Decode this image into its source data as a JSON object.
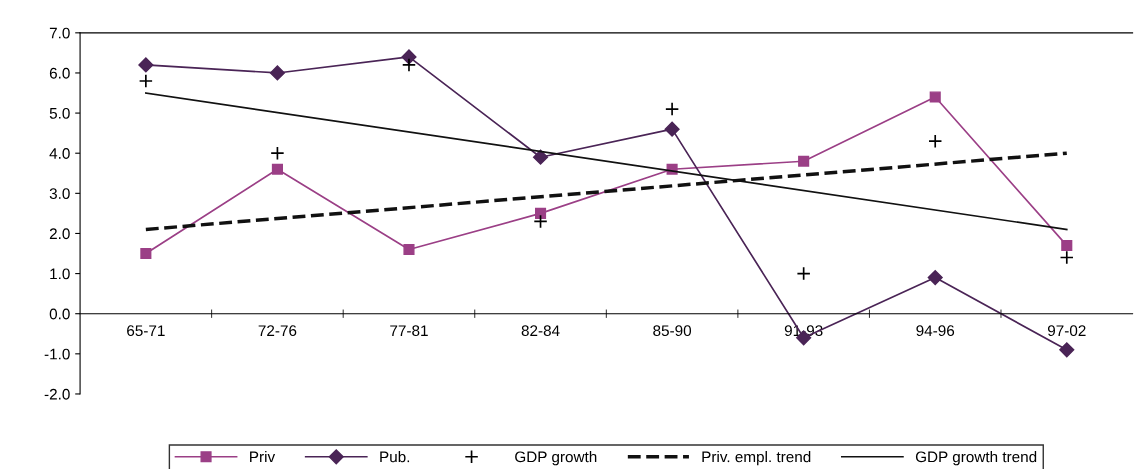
{
  "chart_data": {
    "type": "line",
    "categories": [
      "65-71",
      "72-76",
      "77-81",
      "82-84",
      "85-90",
      "91-93",
      "94-96",
      "97-02"
    ],
    "ylim": [
      -2.0,
      7.0
    ],
    "yticks": [
      {
        "value": -2,
        "label": "-2.0"
      },
      {
        "value": -1,
        "label": "-1.0"
      },
      {
        "value": 0,
        "label": "0.0"
      },
      {
        "value": 1,
        "label": "1.0"
      },
      {
        "value": 2,
        "label": "2.0"
      },
      {
        "value": 3,
        "label": "3.0"
      },
      {
        "value": 4,
        "label": "4.0"
      },
      {
        "value": 5,
        "label": "5.0"
      },
      {
        "value": 6,
        "label": "6.0"
      },
      {
        "value": 7,
        "label": "7.0"
      }
    ],
    "grid": false,
    "legend": "bottom",
    "series": [
      {
        "name": "Priv",
        "color": "#9b3f86",
        "marker": "square",
        "line_style": "solid",
        "values": [
          1.5,
          3.6,
          1.6,
          2.5,
          3.6,
          3.8,
          5.4,
          1.7
        ]
      },
      {
        "name": "Pub.",
        "color": "#4a2456",
        "marker": "diamond",
        "line_style": "solid",
        "values": [
          6.2,
          6.0,
          6.4,
          3.9,
          4.6,
          -0.6,
          0.9,
          -0.9
        ]
      },
      {
        "name": "GDP growth",
        "type": "scatter",
        "color": "#000000",
        "marker": "cross",
        "values": [
          5.8,
          4.0,
          6.2,
          2.3,
          5.1,
          1.0,
          4.3,
          1.4
        ]
      },
      {
        "name": "Priv. empl. trend",
        "color": "#111111",
        "marker": "none",
        "line_style": "dashed",
        "values": [
          2.1,
          null,
          null,
          null,
          null,
          null,
          null,
          4.0
        ]
      },
      {
        "name": "GDP growth trend",
        "color": "#111111",
        "marker": "none",
        "line_style": "solid",
        "values": [
          5.5,
          null,
          null,
          null,
          null,
          null,
          null,
          2.1
        ]
      }
    ]
  }
}
